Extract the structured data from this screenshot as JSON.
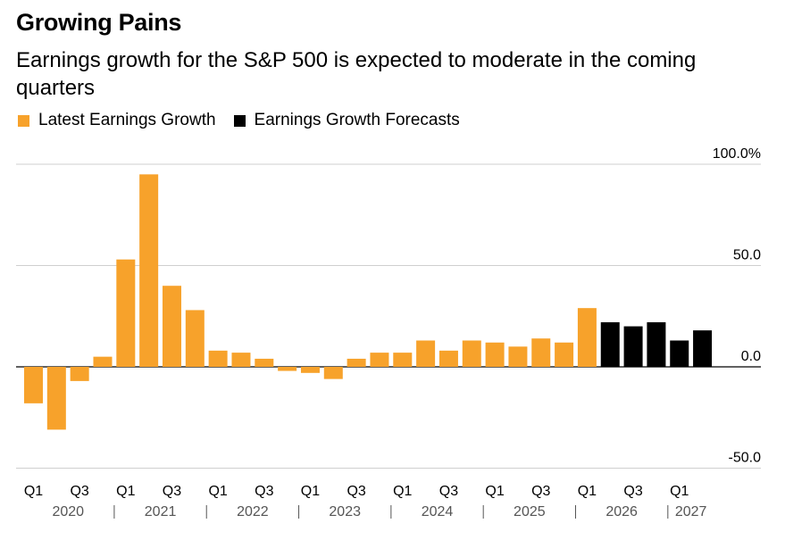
{
  "title": "Growing Pains",
  "subtitle": "Earnings growth for the S&P 500 is expected to moderate in the coming quarters",
  "legend": [
    {
      "label": "Latest Earnings Growth",
      "color": "#F7A22B"
    },
    {
      "label": "Earnings Growth Forecasts",
      "color": "#000000"
    }
  ],
  "chart_data": {
    "type": "bar",
    "ylim": [
      -50,
      100
    ],
    "yticks": [
      {
        "value": 100,
        "label": "100.0%"
      },
      {
        "value": 50,
        "label": "50.0"
      },
      {
        "value": 0,
        "label": "0.0"
      },
      {
        "value": -50,
        "label": "-50.0"
      }
    ],
    "grid": true,
    "quarter_labels": {
      "0": "Q1",
      "2": "Q3"
    },
    "years": [
      "2020",
      "2021",
      "2022",
      "2023",
      "2024",
      "2025",
      "2026",
      "2027"
    ],
    "series": [
      {
        "name": "Latest Earnings Growth",
        "color": "#F7A22B",
        "values": [
          -18,
          -31,
          -7,
          5,
          53,
          95,
          40,
          28,
          8,
          7,
          4,
          -2,
          -3,
          -6,
          4,
          7,
          7,
          13,
          8,
          13,
          12,
          10,
          14,
          12,
          29
        ]
      },
      {
        "name": "Earnings Growth Forecasts",
        "color": "#000000",
        "values": [
          22,
          20,
          22,
          13,
          18
        ]
      }
    ]
  }
}
